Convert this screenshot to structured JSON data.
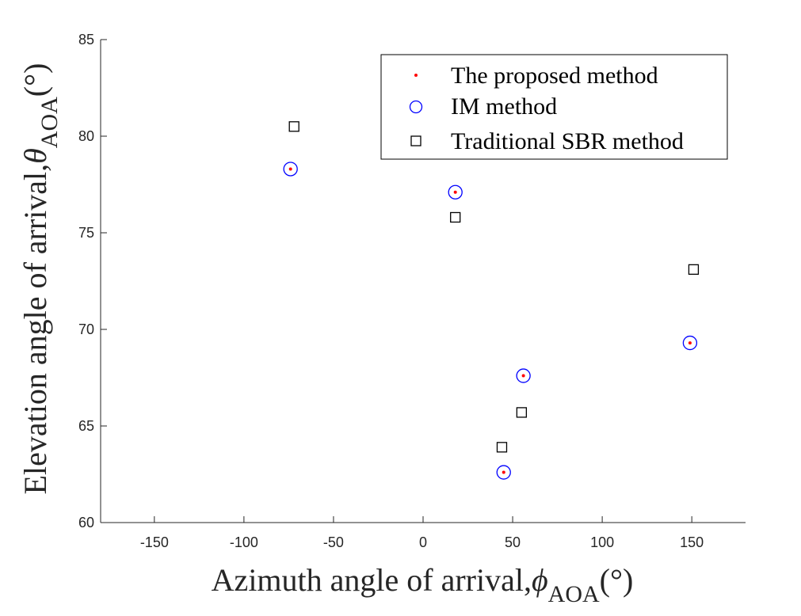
{
  "chart_data": {
    "type": "scatter",
    "title": "",
    "xlabel": "Azimuth angle of arrival,",
    "xlabel_symbol": "ϕ",
    "xlabel_subscript": "AOA",
    "xlabel_unit": "(°)",
    "ylabel": "Elevation angle of arrival,",
    "ylabel_symbol": "θ",
    "ylabel_subscript": "AOA",
    "ylabel_unit": "(°)",
    "xlim": [
      -180,
      180
    ],
    "ylim": [
      60,
      85
    ],
    "xticks": [
      -150,
      -100,
      -50,
      0,
      50,
      100,
      150
    ],
    "yticks": [
      60,
      65,
      70,
      75,
      80,
      85
    ],
    "grid": false,
    "legend_position": "top-right",
    "series": [
      {
        "name": "The proposed method",
        "marker": "dot",
        "color": "#ff0000",
        "points": [
          [
            -74,
            78.3
          ],
          [
            18,
            77.1
          ],
          [
            56,
            67.6
          ],
          [
            45,
            62.6
          ],
          [
            149,
            69.3
          ]
        ]
      },
      {
        "name": "IM method",
        "marker": "circle",
        "color": "#0000ff",
        "points": [
          [
            -74,
            78.3
          ],
          [
            18,
            77.1
          ],
          [
            56,
            67.6
          ],
          [
            45,
            62.6
          ],
          [
            149,
            69.3
          ]
        ]
      },
      {
        "name": "Traditional SBR method",
        "marker": "square",
        "color": "#000000",
        "points": [
          [
            -72,
            80.5
          ],
          [
            18,
            75.8
          ],
          [
            55,
            65.7
          ],
          [
            44,
            63.9
          ],
          [
            151,
            73.1
          ]
        ]
      }
    ]
  }
}
